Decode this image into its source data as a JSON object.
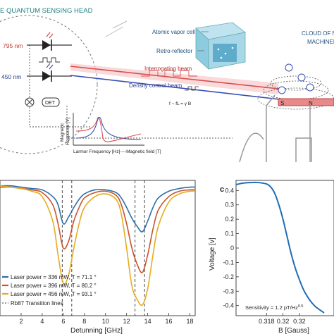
{
  "top_panel": {
    "head_title": "E QUANTUM SENSING HEAD",
    "laser_795": "795 nm",
    "laser_450": "450 nm",
    "det_label": "DET",
    "atomic_vapor_cell": "Atomic vapor cell",
    "retro_reflector": "Retro-reflector",
    "interrogating_beam": "Interrogating beam",
    "density_control_beam": "Density control beam",
    "cloud_label_1": "CLOUD OF N",
    "cloud_label_2": "MACHINED",
    "freq_relation": "f ~ fL = γ B",
    "inset_ylabel_1": "Magnetic",
    "inset_ylabel_2": "Response [V]",
    "inset_xlabel": "Larmor Frequency [Hz]----Magnetic field [T]",
    "magnet_s": "S",
    "magnet_n": "N"
  },
  "chart_data": [
    {
      "type": "line",
      "xlabel": "Detunning [GHz]",
      "ylabel": "",
      "xlim": [
        0,
        18.5
      ],
      "ylim": [
        0,
        1
      ],
      "xticks": [
        "2",
        "4",
        "6",
        "8",
        "10",
        "12",
        "14",
        "16",
        "18"
      ],
      "xtick_values": [
        2,
        4,
        6,
        8,
        10,
        12,
        14,
        16,
        18
      ],
      "x": [
        0,
        1,
        2,
        3,
        4,
        5,
        5.5,
        6,
        6.5,
        7,
        7.5,
        8,
        9,
        10,
        11,
        11.5,
        12,
        12.5,
        13,
        13.5,
        14,
        14.5,
        15,
        16,
        17,
        18,
        18.5
      ],
      "series": [
        {
          "name": "Laser power = 336 mW, T = 71.1 °",
          "color": "#2c6ea8",
          "values": [
            0.96,
            0.96,
            0.95,
            0.94,
            0.93,
            0.88,
            0.82,
            0.68,
            0.73,
            0.8,
            0.86,
            0.9,
            0.93,
            0.93,
            0.91,
            0.87,
            0.8,
            0.72,
            0.66,
            0.62,
            0.7,
            0.8,
            0.87,
            0.92,
            0.94,
            0.95,
            0.95
          ]
        },
        {
          "name": "Laser power = 396 mW, T = 80.2 °",
          "color": "#c9532a",
          "values": [
            0.95,
            0.95,
            0.94,
            0.93,
            0.91,
            0.82,
            0.68,
            0.5,
            0.55,
            0.7,
            0.8,
            0.87,
            0.91,
            0.92,
            0.89,
            0.82,
            0.68,
            0.5,
            0.38,
            0.32,
            0.45,
            0.64,
            0.78,
            0.88,
            0.92,
            0.93,
            0.93
          ]
        },
        {
          "name": "Laser power = 456 mW, T = 93.1 °",
          "color": "#e5ac1f",
          "values": [
            0.96,
            0.95,
            0.94,
            0.92,
            0.88,
            0.7,
            0.45,
            0.24,
            0.3,
            0.5,
            0.68,
            0.8,
            0.88,
            0.9,
            0.86,
            0.75,
            0.5,
            0.22,
            0.12,
            0.08,
            0.2,
            0.45,
            0.66,
            0.84,
            0.9,
            0.92,
            0.92
          ]
        }
      ],
      "transition_lines": {
        "name": "Rb87 Transition lines",
        "x": [
          5.9,
          6.8,
          12.8,
          13.7
        ]
      }
    },
    {
      "type": "line",
      "panel_label": "c",
      "xlabel": "B [Gauss]",
      "ylabel": "Voltage [v]",
      "xlim": [
        0.3143,
        0.3262
      ],
      "ylim": [
        -0.47,
        0.47
      ],
      "xticks": [
        "0.318",
        "0.32",
        "0.32"
      ],
      "xtick_values": [
        0.318,
        0.32,
        0.322
      ],
      "yticks": [
        "0.4",
        "0.3",
        "0.2",
        "0.1",
        "0",
        "-0.1",
        "-0.2",
        "-0.3",
        "-0.4"
      ],
      "ytick_values": [
        0.4,
        0.3,
        0.2,
        0.1,
        0,
        -0.1,
        -0.2,
        -0.3,
        -0.4
      ],
      "series": [
        {
          "name": "",
          "color": "#1f6db5",
          "x": [
            0.3143,
            0.315,
            0.316,
            0.317,
            0.318,
            0.3185,
            0.319,
            0.3195,
            0.32,
            0.3205,
            0.321,
            0.3215,
            0.322,
            0.3225,
            0.323,
            0.3235,
            0.324,
            0.325
          ],
          "values": [
            0.44,
            0.45,
            0.455,
            0.455,
            0.445,
            0.425,
            0.38,
            0.3,
            0.2,
            0.08,
            -0.04,
            -0.14,
            -0.22,
            -0.29,
            -0.34,
            -0.38,
            -0.41,
            -0.45
          ]
        }
      ],
      "annotation": "Sensitivity = 1.2 pT/Hz^0.5"
    }
  ]
}
